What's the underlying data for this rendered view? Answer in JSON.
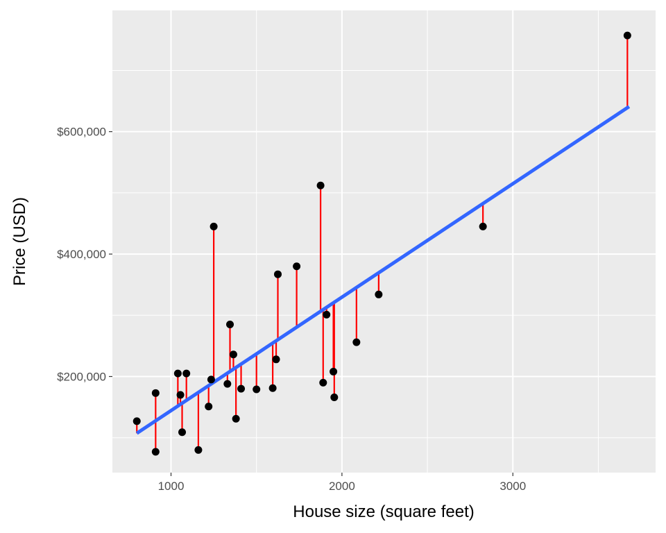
{
  "chart_data": {
    "type": "scatter",
    "title": "",
    "xlabel": "House size (square feet)",
    "ylabel": "Price (USD)",
    "xlim": [
      657,
      3835
    ],
    "ylim": [
      43000,
      798000
    ],
    "x_ticks": [
      1000,
      2000,
      3000
    ],
    "x_tick_labels": [
      "1000",
      "2000",
      "3000"
    ],
    "x_minor_ticks": [
      1500,
      2500,
      3500
    ],
    "y_ticks": [
      200000,
      400000,
      600000
    ],
    "y_tick_labels": [
      "$200,000",
      "$400,000",
      "$600,000"
    ],
    "y_minor_ticks": [
      100000,
      300000,
      500000,
      700000
    ],
    "grid": true,
    "regression_line": {
      "slope": 185.3,
      "intercept": -41000,
      "x_range": [
        800,
        3680
      ]
    },
    "points": [
      {
        "x": 800,
        "y": 127000
      },
      {
        "x": 910,
        "y": 173000
      },
      {
        "x": 910,
        "y": 77000
      },
      {
        "x": 1040,
        "y": 205000
      },
      {
        "x": 1055,
        "y": 170000
      },
      {
        "x": 1065,
        "y": 109000
      },
      {
        "x": 1090,
        "y": 205000
      },
      {
        "x": 1160,
        "y": 80000
      },
      {
        "x": 1220,
        "y": 151000
      },
      {
        "x": 1235,
        "y": 195000
      },
      {
        "x": 1250,
        "y": 445000
      },
      {
        "x": 1330,
        "y": 188000
      },
      {
        "x": 1345,
        "y": 285000
      },
      {
        "x": 1365,
        "y": 236000
      },
      {
        "x": 1380,
        "y": 131000
      },
      {
        "x": 1410,
        "y": 180000
      },
      {
        "x": 1500,
        "y": 179000
      },
      {
        "x": 1595,
        "y": 181000
      },
      {
        "x": 1615,
        "y": 228000
      },
      {
        "x": 1625,
        "y": 367000
      },
      {
        "x": 1735,
        "y": 380000
      },
      {
        "x": 1875,
        "y": 512000
      },
      {
        "x": 1890,
        "y": 190000
      },
      {
        "x": 1910,
        "y": 301000
      },
      {
        "x": 1950,
        "y": 208000
      },
      {
        "x": 1955,
        "y": 166000
      },
      {
        "x": 2085,
        "y": 256000
      },
      {
        "x": 2215,
        "y": 334000
      },
      {
        "x": 2825,
        "y": 445000
      },
      {
        "x": 3670,
        "y": 757000
      }
    ],
    "colors": {
      "panel": "#ebebeb",
      "grid": "#ffffff",
      "point": "#000000",
      "residual": "#ff0000",
      "fit": "#3366ff"
    }
  }
}
